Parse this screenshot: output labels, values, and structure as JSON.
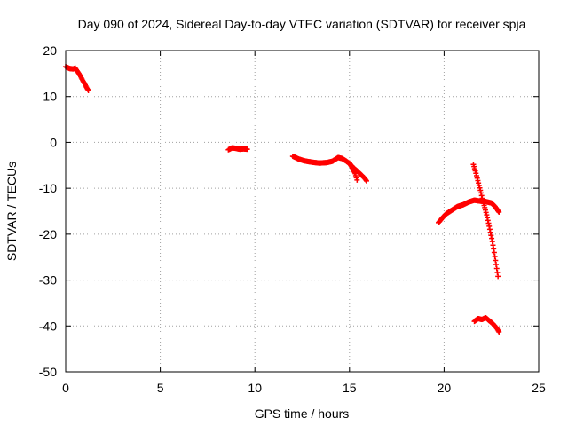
{
  "chart_data": {
    "type": "scatter",
    "title": "Day 090 of 2024, Sidereal Day-to-day VTEC variation (SDTVAR) for receiver spja",
    "xlabel": "GPS time / hours",
    "ylabel": "SDTVAR / TECUs",
    "xlim": [
      0,
      25
    ],
    "ylim": [
      -50,
      20
    ],
    "xticks": [
      0,
      5,
      10,
      15,
      20,
      25
    ],
    "yticks": [
      20,
      10,
      0,
      -10,
      -20,
      -30,
      -40,
      -50
    ],
    "grid": true,
    "legend": "none",
    "marker": "+",
    "color": "#ff0000",
    "segments": [
      {
        "x": [
          0.0,
          0.2,
          0.4,
          0.5,
          0.6,
          0.7,
          0.8,
          0.9,
          1.0,
          1.1,
          1.2
        ],
        "y": [
          16.5,
          16.1,
          16.0,
          16.2,
          15.6,
          15.0,
          14.3,
          13.5,
          12.8,
          12.0,
          11.3
        ]
      },
      {
        "x": [
          8.6,
          8.8,
          9.0,
          9.2,
          9.4,
          9.6
        ],
        "y": [
          -1.6,
          -1.2,
          -1.3,
          -1.5,
          -1.4,
          -1.5
        ]
      },
      {
        "x": [
          12.0,
          12.3,
          12.6,
          13.0,
          13.4,
          13.8,
          14.1,
          14.4,
          14.6,
          14.8,
          15.0,
          15.2,
          15.4,
          15.6,
          15.8,
          15.9
        ],
        "y": [
          -3.0,
          -3.6,
          -4.0,
          -4.3,
          -4.5,
          -4.4,
          -4.1,
          -3.3,
          -3.5,
          -4.0,
          -4.6,
          -5.5,
          -6.2,
          -7.0,
          -7.8,
          -8.4
        ]
      },
      {
        "x": [
          15.0,
          15.15,
          15.3,
          15.4
        ],
        "y": [
          -4.5,
          -5.6,
          -6.8,
          -8.2
        ]
      },
      {
        "x": [
          19.7,
          19.9,
          20.1,
          20.4,
          20.7,
          21.0,
          21.3,
          21.6,
          21.9,
          22.2,
          22.5,
          22.7,
          22.9
        ],
        "y": [
          -17.5,
          -16.5,
          -15.6,
          -14.8,
          -14.0,
          -13.6,
          -13.0,
          -12.6,
          -12.8,
          -12.9,
          -13.2,
          -14.0,
          -15.2
        ]
      },
      {
        "x": [
          21.55,
          21.65,
          21.75,
          21.85,
          21.95,
          22.05,
          22.15,
          22.25,
          22.35,
          22.45,
          22.55,
          22.65,
          22.75,
          22.85
        ],
        "y": [
          -4.8,
          -6.2,
          -7.8,
          -9.4,
          -11.0,
          -12.8,
          -14.2,
          -15.8,
          -17.6,
          -19.6,
          -21.6,
          -24.0,
          -26.6,
          -29.2
        ]
      },
      {
        "x": [
          21.6,
          21.8,
          22.0,
          22.2,
          22.4,
          22.6,
          22.8,
          22.9
        ],
        "y": [
          -39.0,
          -38.4,
          -38.6,
          -38.2,
          -38.9,
          -39.6,
          -40.6,
          -41.3
        ]
      }
    ]
  }
}
